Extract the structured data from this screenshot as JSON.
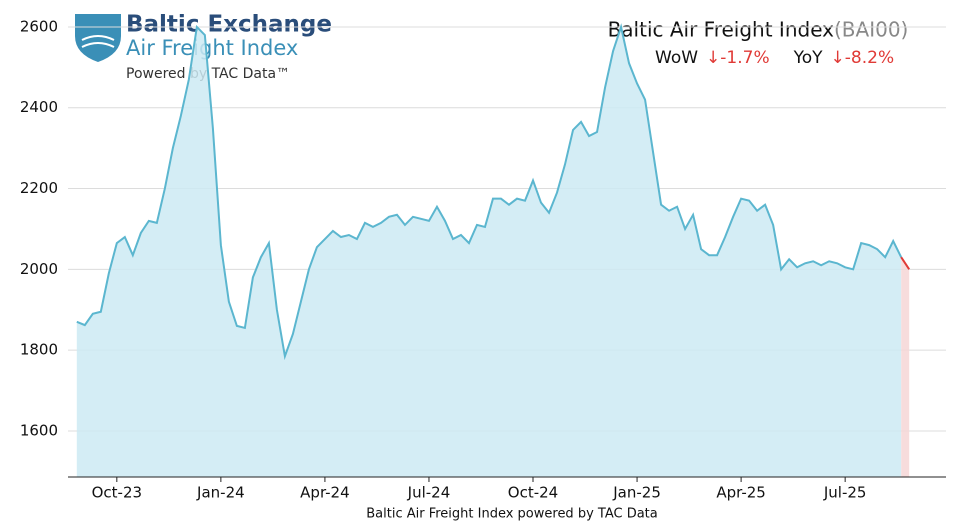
{
  "chart_data": {
    "type": "area",
    "logo": {
      "title": "Baltic Exchange",
      "subtitle": "Air Freight Index",
      "tagline": "Powered by TAC Data™"
    },
    "title": "Baltic Air Freight Index",
    "code": "(BAI00)",
    "stats": [
      {
        "label": "WoW",
        "value_label": "↓-1.7%",
        "value": -1.7
      },
      {
        "label": "YoY",
        "value_label": "↓-8.2%",
        "value": -8.2
      }
    ],
    "xlabel": "Baltic Air Freight Index powered by TAC Data",
    "x": [
      0,
      1,
      2,
      3,
      4,
      5,
      6,
      7,
      8,
      9,
      10,
      11,
      12,
      13,
      14,
      15,
      16,
      17,
      18,
      19,
      20,
      21,
      22,
      23,
      24,
      25,
      26,
      27,
      28,
      29,
      30,
      31,
      32,
      33,
      34,
      35,
      36,
      37,
      38,
      39,
      40,
      41,
      42,
      43,
      44,
      45,
      46,
      47,
      48,
      49,
      50,
      51,
      52,
      53,
      54,
      55,
      56,
      57,
      58,
      59,
      60,
      61,
      62,
      63,
      64,
      65,
      66,
      67,
      68,
      69,
      70,
      71,
      72,
      73,
      74,
      75,
      76,
      77,
      78,
      79,
      80,
      81,
      82,
      83,
      84,
      85,
      86,
      87,
      88,
      89,
      90,
      91,
      92,
      93,
      94,
      95,
      96,
      97,
      98,
      99,
      100,
      101,
      102,
      103,
      104
    ],
    "series": [
      {
        "name": "BAI00",
        "color": "#5bb6cf",
        "fill": "#cdeaf3",
        "latest_color": "#e03a36",
        "latest_fill": "#f6d6d6",
        "values": [
          1870,
          1862,
          1890,
          1895,
          1990,
          2065,
          2080,
          2035,
          2090,
          2120,
          2115,
          2200,
          2300,
          2380,
          2470,
          2600,
          2580,
          2350,
          2060,
          1920,
          1860,
          1855,
          1980,
          2030,
          2065,
          1900,
          1785,
          1840,
          1920,
          2000,
          2055,
          2075,
          2095,
          2080,
          2085,
          2075,
          2115,
          2105,
          2115,
          2130,
          2135,
          2110,
          2130,
          2125,
          2120,
          2155,
          2120,
          2075,
          2085,
          2065,
          2110,
          2105,
          2175,
          2175,
          2160,
          2175,
          2170,
          2220,
          2165,
          2140,
          2190,
          2260,
          2345,
          2365,
          2330,
          2340,
          2450,
          2540,
          2600,
          2510,
          2460,
          2420,
          2290,
          2160,
          2145,
          2155,
          2100,
          2135,
          2050,
          2035,
          2035,
          2080,
          2130,
          2175,
          2170,
          2145,
          2160,
          2110,
          2000,
          2025,
          2005,
          2015,
          2020,
          2010,
          2020,
          2015,
          2005,
          2000,
          2065,
          2060,
          2050,
          2030,
          2070,
          2030,
          2000
        ]
      }
    ],
    "xlim": [
      -1.1,
      108.6
    ],
    "xticks": [
      {
        "value": 5,
        "label": "Oct-23"
      },
      {
        "value": 18,
        "label": "Jan-24"
      },
      {
        "value": 31,
        "label": "Apr-24"
      },
      {
        "value": 44,
        "label": "Jul-24"
      },
      {
        "value": 57,
        "label": "Oct-24"
      },
      {
        "value": 70,
        "label": "Jan-25"
      },
      {
        "value": 83,
        "label": "Apr-25"
      },
      {
        "value": 96,
        "label": "Jul-25"
      }
    ],
    "ylim": [
      1486,
      2660
    ],
    "yticks": [
      1600,
      1800,
      2000,
      2200,
      2400,
      2600
    ],
    "grid": true
  }
}
